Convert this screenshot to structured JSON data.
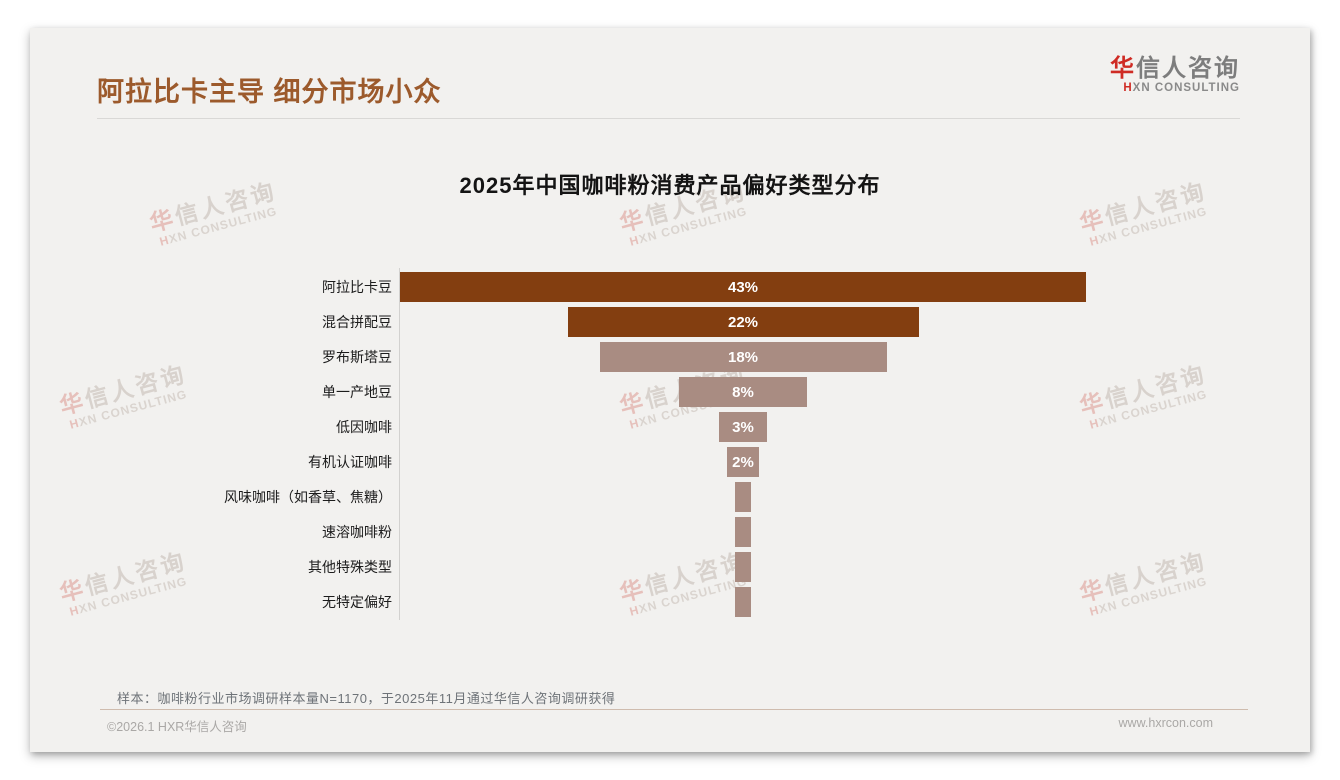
{
  "slide": {
    "title": "阿拉比卡主导 细分市场小众",
    "title_color": "#9c5a2c"
  },
  "logo": {
    "cn_accent": "华",
    "cn_rest": "信人咨询",
    "en_accent": "H",
    "en_rest": "XN CONSULTING"
  },
  "watermark": {
    "line1_accent": "华",
    "line1_rest": "信人咨询",
    "line2_accent": "H",
    "line2_rest": "XN CONSULTING"
  },
  "chart_data": {
    "type": "bar",
    "orientation": "horizontal_centered_funnel",
    "title": "2025年中国咖啡粉消费产品偏好类型分布",
    "categories": [
      "阿拉比卡豆",
      "混合拼配豆",
      "罗布斯塔豆",
      "单一产地豆",
      "低因咖啡",
      "有机认证咖啡",
      "风味咖啡（如香草、焦糖）",
      "速溶咖啡粉",
      "其他特殊类型",
      "无特定偏好"
    ],
    "values": [
      43,
      22,
      18,
      8,
      3,
      2,
      1,
      1,
      1,
      1
    ],
    "bar_labels": [
      "43%",
      "22%",
      "18%",
      "8%",
      "3%",
      "2%",
      "",
      "",
      "",
      ""
    ],
    "bar_colors": [
      "#833e10",
      "#833e10",
      "#a98c82",
      "#a98c82",
      "#a98c82",
      "#a98c82",
      "#a98c82",
      "#a98c82",
      "#a98c82",
      "#a98c82"
    ],
    "xlim": [
      0,
      43
    ],
    "grid": false,
    "legend": false
  },
  "footnote": "样本：咖啡粉行业市场调研样本量N=1170，于2025年11月通过华信人咨询调研获得",
  "footer": {
    "left": "©2026.1 HXR华信人咨询",
    "right": "www.hxrcon.com"
  }
}
